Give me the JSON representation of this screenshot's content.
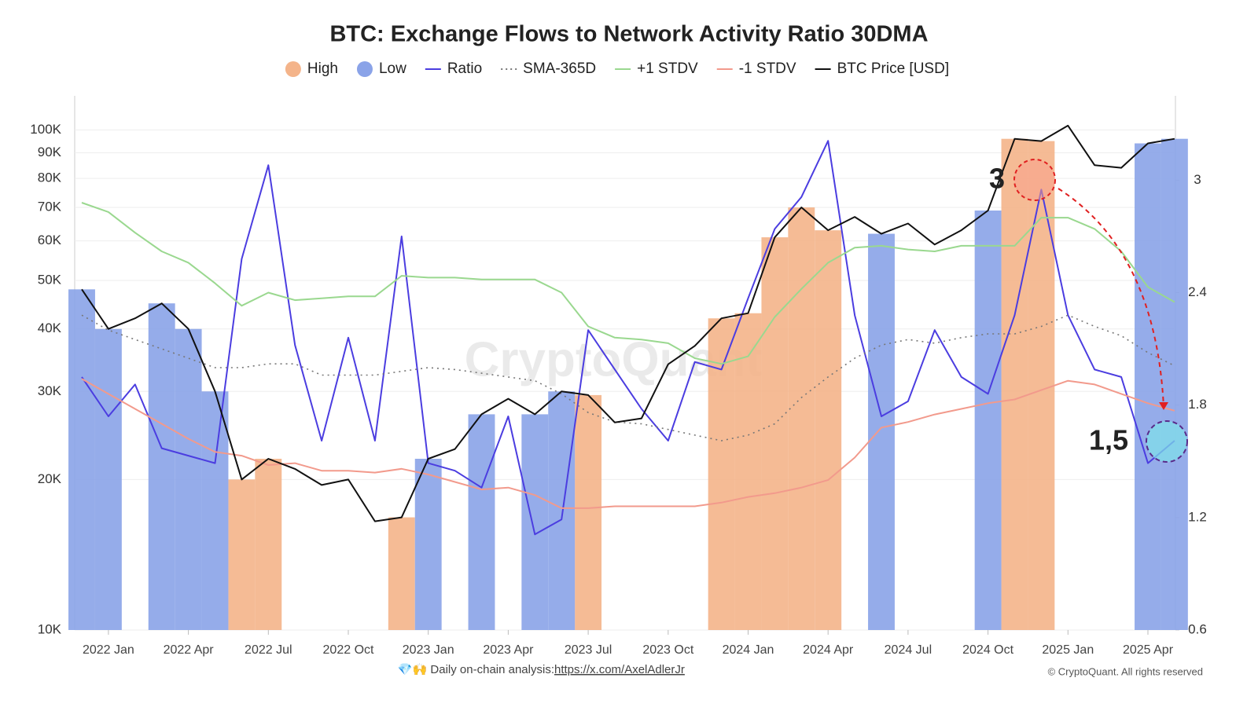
{
  "chart_data": {
    "type": "line",
    "title": "BTC: Exchange Flows to Network Activity Ratio 30DMA",
    "watermark": "CryptoQuant",
    "footer": "💎🙌 Daily on-chain analysis: ",
    "footer_link": "https://x.com/AxelAdlerJr",
    "copyright": "© CryptoQuant. All rights reserved",
    "annotations": [
      "3",
      "1,5"
    ],
    "ylog": true,
    "grid": true,
    "categories": [
      null,
      "2022 Jan",
      null,
      null,
      "2022 Apr",
      null,
      null,
      "2022 Jul",
      null,
      null,
      "2022 Oct",
      null,
      null,
      "2023 Jan",
      null,
      null,
      "2023 Apr",
      null,
      null,
      "2023 Jul",
      null,
      null,
      "2023 Oct",
      null,
      null,
      "2024 Jan",
      null,
      null,
      "2024 Apr",
      null,
      null,
      "2024 Jul",
      null,
      null,
      "2024 Oct",
      null,
      null,
      "2025 Jan",
      null,
      null,
      "2025 Apr",
      null
    ],
    "ylim": [
      10000,
      117000
    ],
    "yticks": [
      {
        "value": 10000,
        "label": "10K"
      },
      {
        "value": 20000,
        "label": "20K"
      },
      {
        "value": 30000,
        "label": "30K"
      },
      {
        "value": 40000,
        "label": "40K"
      },
      {
        "value": 50000,
        "label": "50K"
      },
      {
        "value": 60000,
        "label": "60K"
      },
      {
        "value": 70000,
        "label": "70K"
      },
      {
        "value": 80000,
        "label": "80K"
      },
      {
        "value": 90000,
        "label": "90K"
      },
      {
        "value": 100000,
        "label": "100K"
      }
    ],
    "y2lim": [
      0.6,
      3.45
    ],
    "y2ticks": [
      0.6,
      1.2,
      1.8,
      2.4,
      3
    ],
    "series": [
      {
        "name": "High",
        "type": "bar",
        "color": "#f4b48a",
        "axis": "y",
        "values": [
          null,
          null,
          null,
          null,
          null,
          null,
          20000,
          22000,
          null,
          null,
          null,
          null,
          16800,
          null,
          null,
          null,
          null,
          null,
          null,
          29500,
          null,
          null,
          null,
          null,
          42000,
          43000,
          61000,
          70000,
          63000,
          null,
          null,
          null,
          null,
          null,
          null,
          96000,
          95000,
          null,
          null,
          null,
          null,
          null
        ]
      },
      {
        "name": "Low",
        "type": "bar",
        "color": "#8aa3e8",
        "axis": "y",
        "values": [
          48000,
          40000,
          null,
          45000,
          40000,
          30000,
          null,
          null,
          null,
          null,
          null,
          null,
          null,
          22000,
          null,
          27000,
          null,
          27000,
          30000,
          null,
          null,
          null,
          null,
          null,
          null,
          null,
          null,
          null,
          null,
          null,
          62000,
          null,
          null,
          null,
          69000,
          null,
          null,
          null,
          null,
          null,
          94000,
          96000
        ]
      },
      {
        "name": "Ratio",
        "type": "line",
        "color": "#4b3de0",
        "axis": "y2",
        "values": [
          1.95,
          1.74,
          1.91,
          1.57,
          1.53,
          1.49,
          2.58,
          3.08,
          2.12,
          1.61,
          2.16,
          1.61,
          2.7,
          1.49,
          1.45,
          1.36,
          1.74,
          1.11,
          1.19,
          2.2,
          1.99,
          1.78,
          1.61,
          2.03,
          1.99,
          2.37,
          2.74,
          2.91,
          3.21,
          2.28,
          1.74,
          1.82,
          2.2,
          1.95,
          1.86,
          2.28,
          2.95,
          2.28,
          1.99,
          1.95,
          1.49,
          1.61
        ]
      },
      {
        "name": "SMA-365D",
        "type": "line",
        "dashed": true,
        "color": "#777777",
        "axis": "y2",
        "values": [
          2.28,
          2.2,
          2.15,
          2.1,
          2.05,
          2.0,
          2.0,
          2.02,
          2.02,
          1.96,
          1.96,
          1.96,
          1.98,
          2.0,
          1.99,
          1.97,
          1.95,
          1.93,
          1.86,
          1.76,
          1.71,
          1.7,
          1.67,
          1.64,
          1.61,
          1.64,
          1.7,
          1.84,
          1.95,
          2.05,
          2.12,
          2.15,
          2.13,
          2.16,
          2.18,
          2.18,
          2.22,
          2.28,
          2.22,
          2.17,
          2.08,
          2.01
        ]
      },
      {
        "name": "+1 STDV",
        "type": "line",
        "color": "#9ad88f",
        "axis": "y2",
        "values": [
          2.88,
          2.83,
          2.72,
          2.62,
          2.56,
          2.45,
          2.33,
          2.4,
          2.36,
          2.37,
          2.38,
          2.38,
          2.49,
          2.48,
          2.48,
          2.47,
          2.47,
          2.47,
          2.4,
          2.22,
          2.16,
          2.15,
          2.13,
          2.05,
          2.02,
          2.06,
          2.27,
          2.42,
          2.56,
          2.64,
          2.65,
          2.63,
          2.62,
          2.65,
          2.65,
          2.65,
          2.8,
          2.8,
          2.74,
          2.62,
          2.43,
          2.35
        ]
      },
      {
        "name": "-1 STDV",
        "type": "line",
        "color": "#f29a8c",
        "axis": "y2",
        "values": [
          1.94,
          1.86,
          1.78,
          1.7,
          1.62,
          1.55,
          1.53,
          1.48,
          1.49,
          1.45,
          1.45,
          1.44,
          1.46,
          1.43,
          1.39,
          1.35,
          1.36,
          1.32,
          1.25,
          1.25,
          1.26,
          1.26,
          1.26,
          1.26,
          1.28,
          1.31,
          1.33,
          1.36,
          1.4,
          1.52,
          1.68,
          1.71,
          1.75,
          1.78,
          1.81,
          1.83,
          1.88,
          1.93,
          1.91,
          1.86,
          1.81,
          1.77
        ]
      },
      {
        "name": "BTC Price [USD]",
        "type": "line",
        "color": "#111111",
        "axis": "y",
        "values": [
          48000,
          40000,
          42000,
          45000,
          40000,
          30000,
          20000,
          22000,
          21000,
          19500,
          20000,
          16500,
          16800,
          22000,
          23000,
          27000,
          29000,
          27000,
          30000,
          29500,
          26000,
          26500,
          34000,
          37000,
          42000,
          43000,
          61000,
          70000,
          63000,
          67000,
          62000,
          65000,
          59000,
          63000,
          69000,
          96000,
          95000,
          102000,
          85000,
          84000,
          94000,
          96000
        ]
      }
    ]
  }
}
